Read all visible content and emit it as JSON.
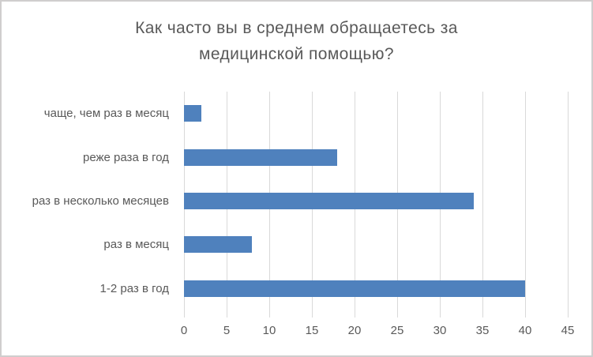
{
  "frame": {
    "background": "#FFFFFF",
    "border_color": "#D0CECE"
  },
  "chart": {
    "title_line1": "Как часто вы в среднем обращаетесь за",
    "title_line2": "медицинской помощью?"
  },
  "chart_data": {
    "type": "bar",
    "orientation": "horizontal",
    "title": "Как часто вы в среднем обращаетесь за медицинской помощью?",
    "categories": [
      "чаще, чем раз в месяц",
      "реже раза в год",
      "раз в несколько месяцев",
      "раз в месяц",
      "1-2 раз в год"
    ],
    "values": [
      2,
      18,
      34,
      8,
      40
    ],
    "xlabel": "",
    "ylabel": "",
    "xlim": [
      0,
      45
    ],
    "xticks": [
      0,
      5,
      10,
      15,
      20,
      25,
      30,
      35,
      40,
      45
    ],
    "grid": true,
    "legend": false,
    "bar_color": "#4F81BD",
    "gridline_color": "#D9D9D9",
    "text_color": "#595959"
  }
}
